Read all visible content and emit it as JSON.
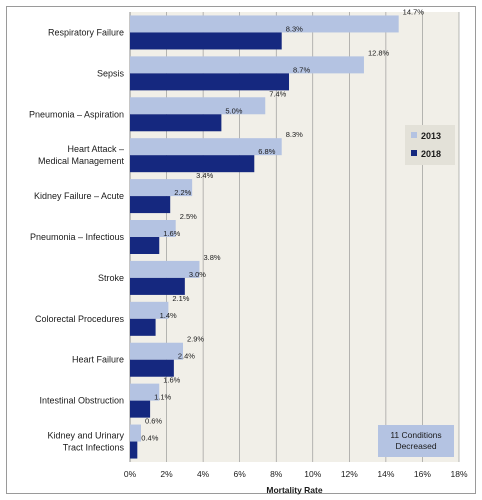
{
  "chart_data": {
    "type": "bar",
    "orientation": "horizontal",
    "categories": [
      [
        "Respiratory Failure"
      ],
      [
        "Sepsis"
      ],
      [
        "Pneumonia – Aspiration"
      ],
      [
        "Heart Attack –",
        "Medical Management"
      ],
      [
        "Kidney Failure – Acute"
      ],
      [
        "Pneumonia – Infectious"
      ],
      [
        "Stroke"
      ],
      [
        "Colorectal Procedures"
      ],
      [
        "Heart Failure"
      ],
      [
        "Intestinal Obstruction"
      ],
      [
        "Kidney and Urinary",
        "Tract Infections"
      ]
    ],
    "series": [
      {
        "name": "2013",
        "color": "#b4c3e2",
        "values": [
          14.7,
          12.8,
          7.4,
          8.3,
          3.4,
          2.5,
          3.8,
          2.1,
          2.9,
          1.6,
          0.6
        ],
        "labels": [
          "14.7%",
          "12.8%",
          "7.4%",
          "8.3%",
          "3.4%",
          "2.5%",
          "3.8%",
          "2.1%",
          "2.9%",
          "1.6%",
          "0.6%"
        ]
      },
      {
        "name": "2018",
        "color": "#15287f",
        "values": [
          8.3,
          8.7,
          5.0,
          6.8,
          2.2,
          1.6,
          3.0,
          1.4,
          2.4,
          1.1,
          0.4
        ],
        "labels": [
          "8.3%",
          "8.7%",
          "5.0%",
          "6.8%",
          "2.2%",
          "1.6%",
          "3.0%",
          "1.4%",
          "2.4%",
          "1.1%",
          "0.4%"
        ]
      }
    ],
    "xlim": [
      0,
      18
    ],
    "xticks": [
      0,
      2,
      4,
      6,
      8,
      10,
      12,
      14,
      16,
      18
    ],
    "xtick_labels": [
      "0%",
      "2%",
      "4%",
      "6%",
      "8%",
      "10%",
      "12%",
      "14%",
      "16%",
      "18%"
    ],
    "xlabel": "Mortality Rate",
    "grid": "vertical",
    "legend_position": "right",
    "annotation": [
      "11 Conditions",
      "Decreased"
    ],
    "colors": {
      "plot_background": "#f1efe8",
      "gridline": "#8c8c8c",
      "note_box": "#b4c3e2"
    }
  }
}
